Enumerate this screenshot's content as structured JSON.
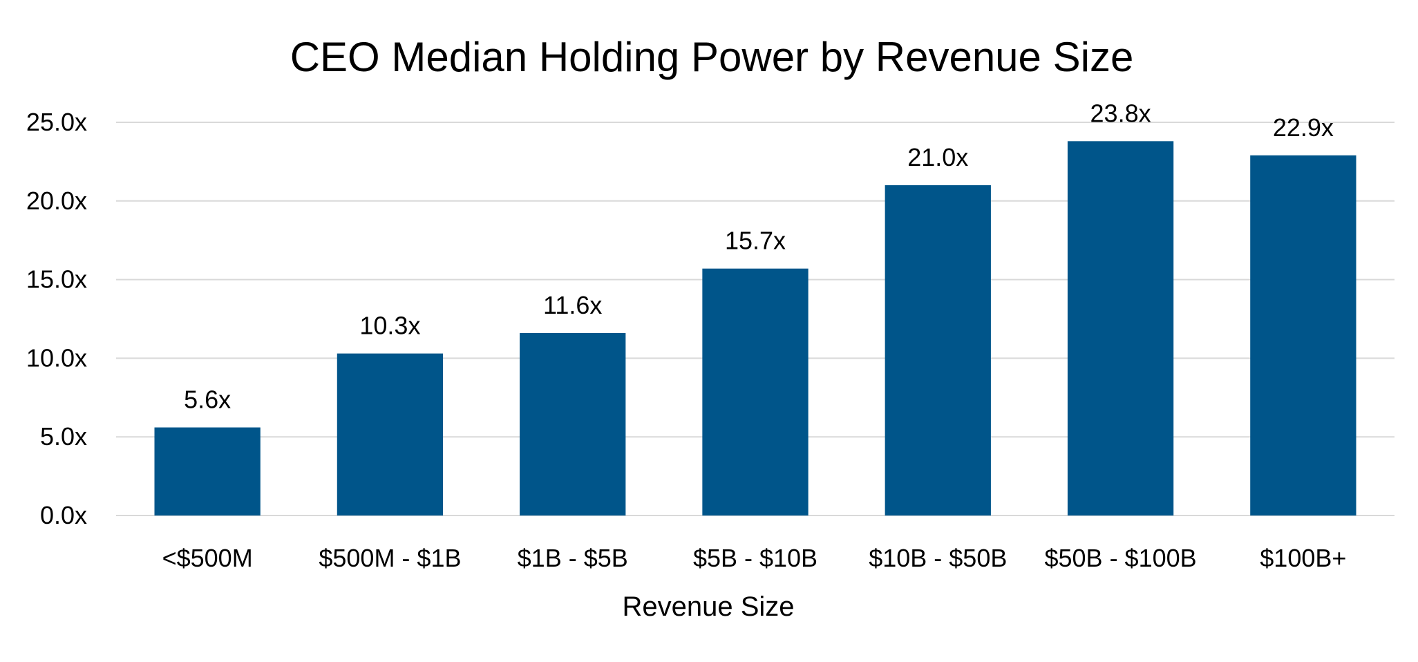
{
  "chart_data": {
    "type": "bar",
    "title": "CEO Median Holding Power by Revenue Size",
    "xlabel": "Revenue Size",
    "ylabel": "",
    "categories": [
      "<$500M",
      "$500M - $1B",
      "$1B - $5B",
      "$5B - $10B",
      "$10B - $50B",
      "$50B - $100B",
      "$100B+"
    ],
    "values": [
      5.6,
      10.3,
      11.6,
      15.7,
      21.0,
      23.8,
      22.9
    ],
    "data_labels": [
      "5.6x",
      "10.3x",
      "11.6x",
      "15.7x",
      "21.0x",
      "23.8x",
      "22.9x"
    ],
    "ylim": [
      0,
      25
    ],
    "yticks": [
      0,
      5,
      10,
      15,
      20,
      25
    ],
    "ytick_labels": [
      "0.0x",
      "5.0x",
      "10.0x",
      "15.0x",
      "20.0x",
      "25.0x"
    ],
    "grid": true,
    "legend": "none",
    "bar_color": "#00558a"
  }
}
